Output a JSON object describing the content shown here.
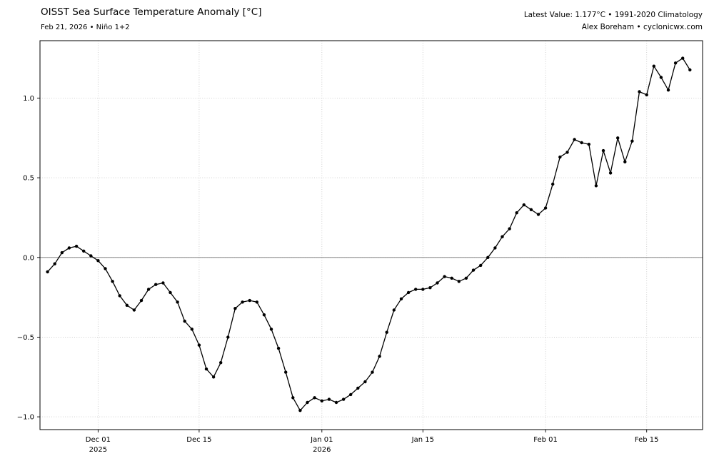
{
  "header": {
    "title": "OISST Sea Surface Temperature Anomaly [°C]",
    "subtitle": "Feb 21, 2026 • Niño 1+2",
    "latest_value_line": "Latest Value: 1.177°C • 1991-2020 Climatology",
    "credit_line": "Alex Boreham • cyclonicwx.com"
  },
  "chart_data": {
    "type": "line",
    "title": "OISST Sea Surface Temperature Anomaly [°C]",
    "region": "Niño 1+2",
    "latest_value_c": 1.177,
    "climatology": "1991-2020",
    "frequency": "daily",
    "start_date": "2025-11-24",
    "end_date": "2026-02-21",
    "ylabel": "",
    "yticks": [
      1.0,
      0.5,
      0.0,
      -0.5,
      -1.0
    ],
    "ylim": [
      -1.08,
      1.36
    ],
    "grid": "dotted",
    "legend": "none",
    "zero_line": true,
    "line_color": "#000000",
    "marker": "circle",
    "x_ticks": [
      {
        "day": 7,
        "label": "Dec 01",
        "sublabel": "2025"
      },
      {
        "day": 21,
        "label": "Dec 15",
        "sublabel": ""
      },
      {
        "day": 38,
        "label": "Jan 01",
        "sublabel": "2026"
      },
      {
        "day": 52,
        "label": "Jan 15",
        "sublabel": ""
      },
      {
        "day": 69,
        "label": "Feb 01",
        "sublabel": ""
      },
      {
        "day": 83,
        "label": "Feb 15",
        "sublabel": ""
      }
    ],
    "values": [
      -0.09,
      -0.04,
      0.03,
      0.06,
      0.07,
      0.04,
      0.01,
      -0.02,
      -0.07,
      -0.15,
      -0.24,
      -0.3,
      -0.33,
      -0.27,
      -0.2,
      -0.17,
      -0.16,
      -0.22,
      -0.28,
      -0.4,
      -0.45,
      -0.55,
      -0.7,
      -0.75,
      -0.66,
      -0.5,
      -0.32,
      -0.28,
      -0.27,
      -0.28,
      -0.36,
      -0.45,
      -0.57,
      -0.72,
      -0.88,
      -0.96,
      -0.91,
      -0.88,
      -0.9,
      -0.89,
      -0.91,
      -0.89,
      -0.86,
      -0.82,
      -0.78,
      -0.72,
      -0.62,
      -0.47,
      -0.33,
      -0.26,
      -0.22,
      -0.2,
      -0.2,
      -0.19,
      -0.16,
      -0.12,
      -0.13,
      -0.15,
      -0.13,
      -0.08,
      -0.05,
      0.0,
      0.06,
      0.13,
      0.18,
      0.28,
      0.33,
      0.3,
      0.27,
      0.31,
      0.46,
      0.63,
      0.66,
      0.74,
      0.72,
      0.71,
      0.45,
      0.67,
      0.53,
      0.75,
      0.6,
      0.73,
      1.04,
      1.02,
      1.2,
      1.13,
      1.05,
      1.22,
      1.25,
      1.177
    ]
  }
}
